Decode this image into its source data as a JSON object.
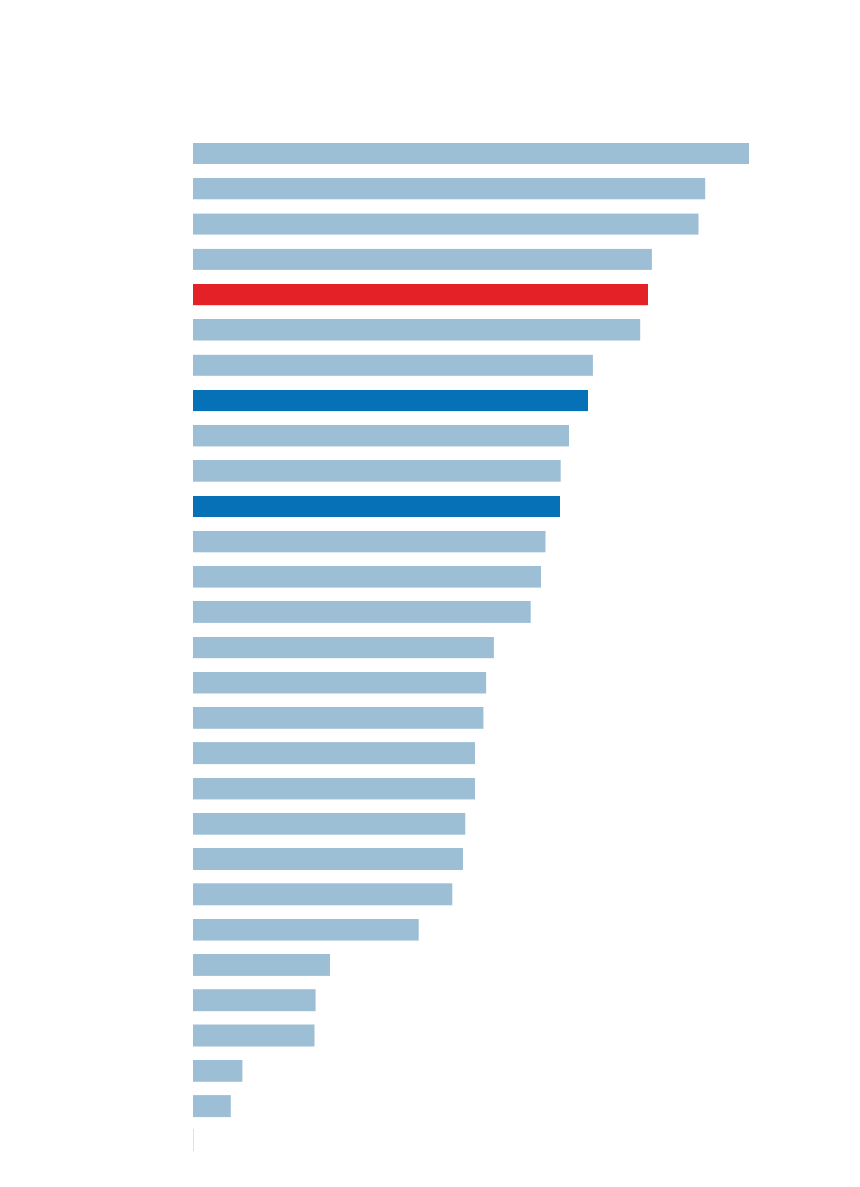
{
  "chart_data": {
    "type": "bar",
    "orientation": "horizontal",
    "xlim": [
      0,
      100
    ],
    "grid": false,
    "legend": "none",
    "colors": {
      "default": "#9dbfd5",
      "highlight_red": "#e32127",
      "highlight_blue": "#0771b8",
      "baseline": "#c9d9e6"
    },
    "bars": [
      {
        "value": 100.0,
        "color": "default"
      },
      {
        "value": 92.0,
        "color": "default"
      },
      {
        "value": 90.9,
        "color": "default"
      },
      {
        "value": 82.5,
        "color": "default"
      },
      {
        "value": 81.8,
        "color": "highlight_red"
      },
      {
        "value": 80.4,
        "color": "default"
      },
      {
        "value": 71.9,
        "color": "default"
      },
      {
        "value": 71.0,
        "color": "highlight_blue"
      },
      {
        "value": 67.6,
        "color": "default"
      },
      {
        "value": 66.0,
        "color": "default"
      },
      {
        "value": 65.9,
        "color": "highlight_blue"
      },
      {
        "value": 63.4,
        "color": "default"
      },
      {
        "value": 62.5,
        "color": "default"
      },
      {
        "value": 60.7,
        "color": "default"
      },
      {
        "value": 54.0,
        "color": "default"
      },
      {
        "value": 52.6,
        "color": "default"
      },
      {
        "value": 52.2,
        "color": "default"
      },
      {
        "value": 50.6,
        "color": "default"
      },
      {
        "value": 50.6,
        "color": "default"
      },
      {
        "value": 48.9,
        "color": "default"
      },
      {
        "value": 48.5,
        "color": "default"
      },
      {
        "value": 46.6,
        "color": "default"
      },
      {
        "value": 40.5,
        "color": "default"
      },
      {
        "value": 24.5,
        "color": "default"
      },
      {
        "value": 22.0,
        "color": "default"
      },
      {
        "value": 21.7,
        "color": "default"
      },
      {
        "value": 8.8,
        "color": "default"
      },
      {
        "value": 6.7,
        "color": "default"
      }
    ]
  }
}
